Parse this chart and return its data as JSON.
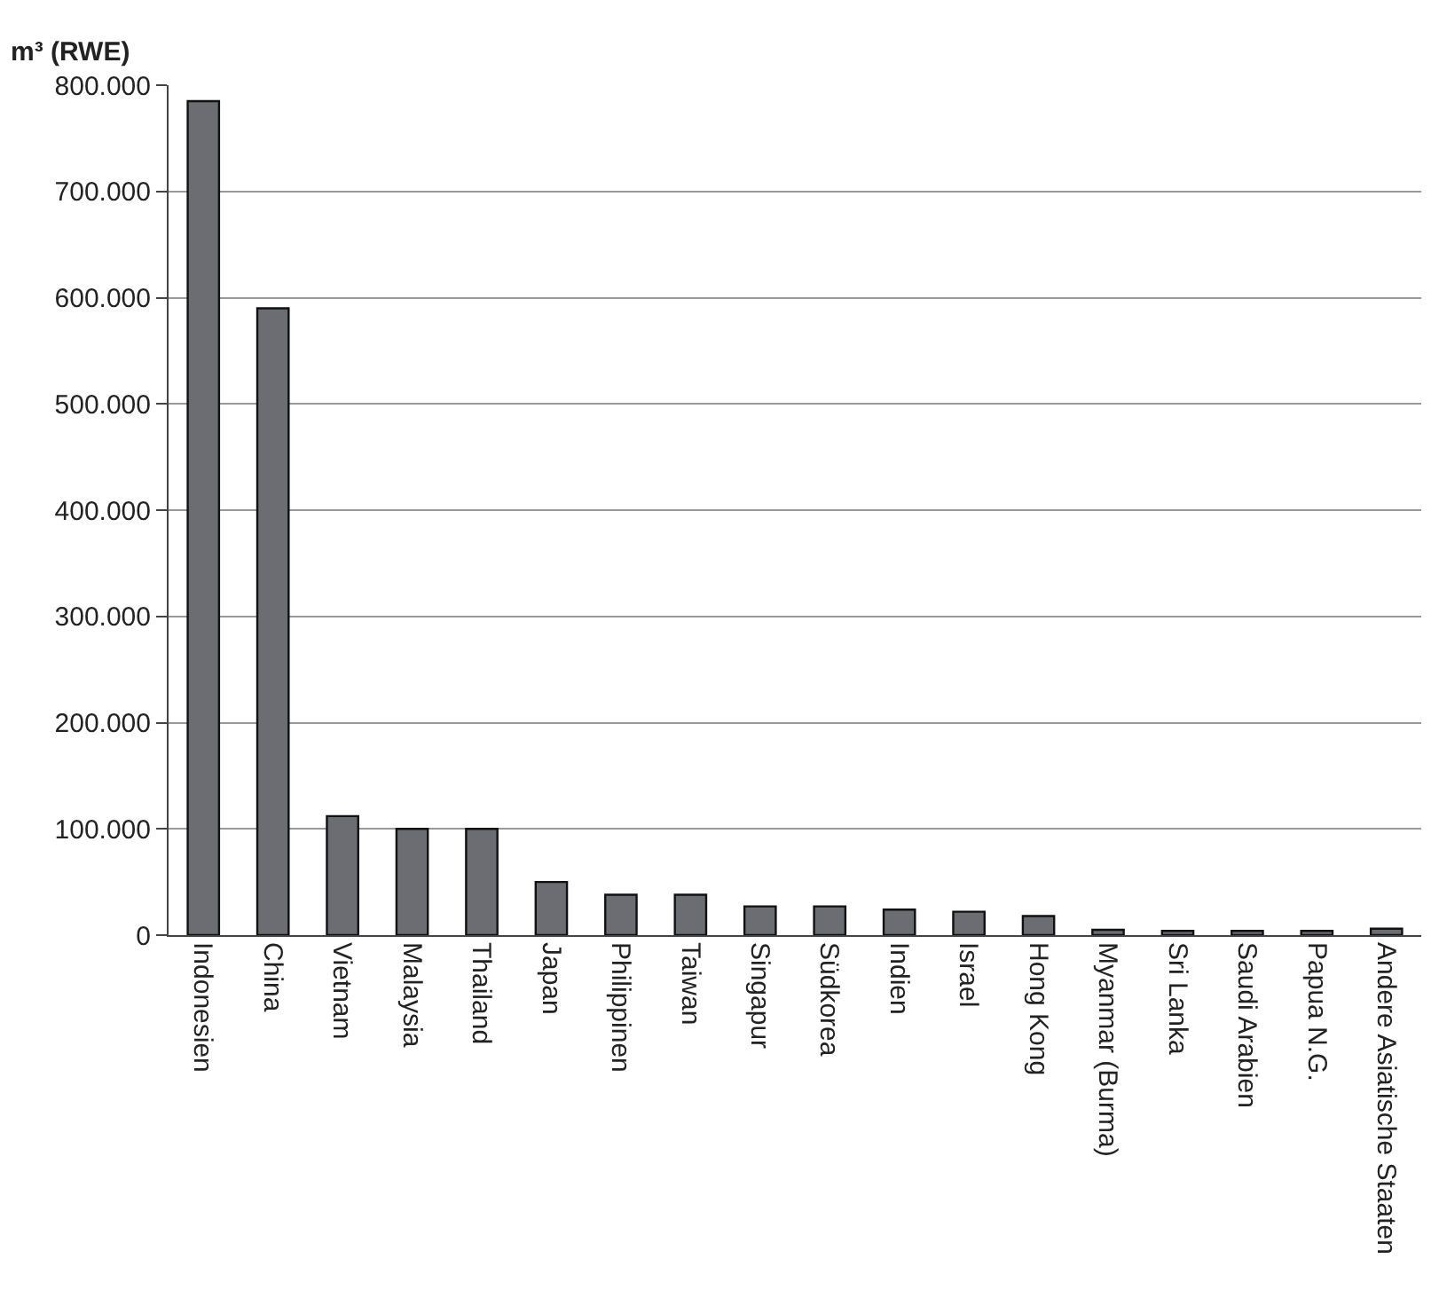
{
  "chart_data": {
    "type": "bar",
    "ylabel": "m³ (RWE)",
    "categories": [
      "Indonesien",
      "China",
      "Vietnam",
      "Malaysia",
      "Thailand",
      "Japan",
      "Philippinen",
      "Taiwan",
      "Singapur",
      "Südkorea",
      "Indien",
      "Israel",
      "Hong Kong",
      "Myanmar (Burma)",
      "Sri Lanka",
      "Saudi Arabien",
      "Papua N.G.",
      "Andere Asiatische Staaten"
    ],
    "values": [
      785000,
      590000,
      112000,
      100000,
      100000,
      50000,
      38000,
      38000,
      27000,
      27000,
      24000,
      22000,
      18000,
      5000,
      4000,
      4000,
      4000,
      6000
    ],
    "color": "#6b6d73",
    "ylim": [
      0,
      800000
    ],
    "yticks": [
      {
        "value": 0,
        "label": "0"
      },
      {
        "value": 100000,
        "label": "100.000"
      },
      {
        "value": 200000,
        "label": "200.000"
      },
      {
        "value": 300000,
        "label": "300.000"
      },
      {
        "value": 400000,
        "label": "400.000"
      },
      {
        "value": 500000,
        "label": "500.000"
      },
      {
        "value": 600000,
        "label": "600.000"
      },
      {
        "value": 700000,
        "label": "700.000"
      },
      {
        "value": 800000,
        "label": "800.000"
      }
    ],
    "grid": "y"
  }
}
